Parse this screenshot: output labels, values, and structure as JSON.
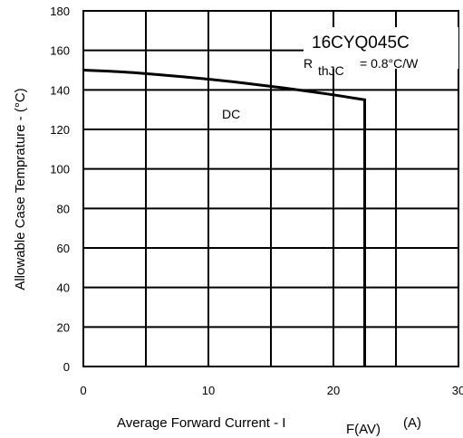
{
  "chart_data": {
    "type": "line",
    "xlabel": "Average Forward Current  - I",
    "xlabel_subscript": "F(AV)",
    "xlabel_unit": "(A)",
    "ylabel": "Allowable Case Temprature - (°C)",
    "xlim": [
      0,
      30
    ],
    "ylim": [
      0,
      180
    ],
    "xticks": [
      "0",
      "10",
      "20",
      "30"
    ],
    "yticks": [
      "0",
      "20",
      "40",
      "60",
      "80",
      "100",
      "120",
      "140",
      "160",
      "180"
    ],
    "grid": true,
    "annotations": {
      "part_number": "16CYQ045C",
      "rth_prefix": "R",
      "rth_subscript": "thJC",
      "rth_value": "= 0.8°C/W",
      "curve_label": "DC"
    },
    "series": [
      {
        "name": "DC",
        "x": [
          0,
          2,
          4,
          6,
          8,
          10,
          12,
          14,
          16,
          18,
          20,
          22.5,
          22.5
        ],
        "y": [
          150,
          149.5,
          148.7,
          147.7,
          146.6,
          145.4,
          144.1,
          142.6,
          141.0,
          139.3,
          137.5,
          135,
          0
        ]
      }
    ]
  }
}
